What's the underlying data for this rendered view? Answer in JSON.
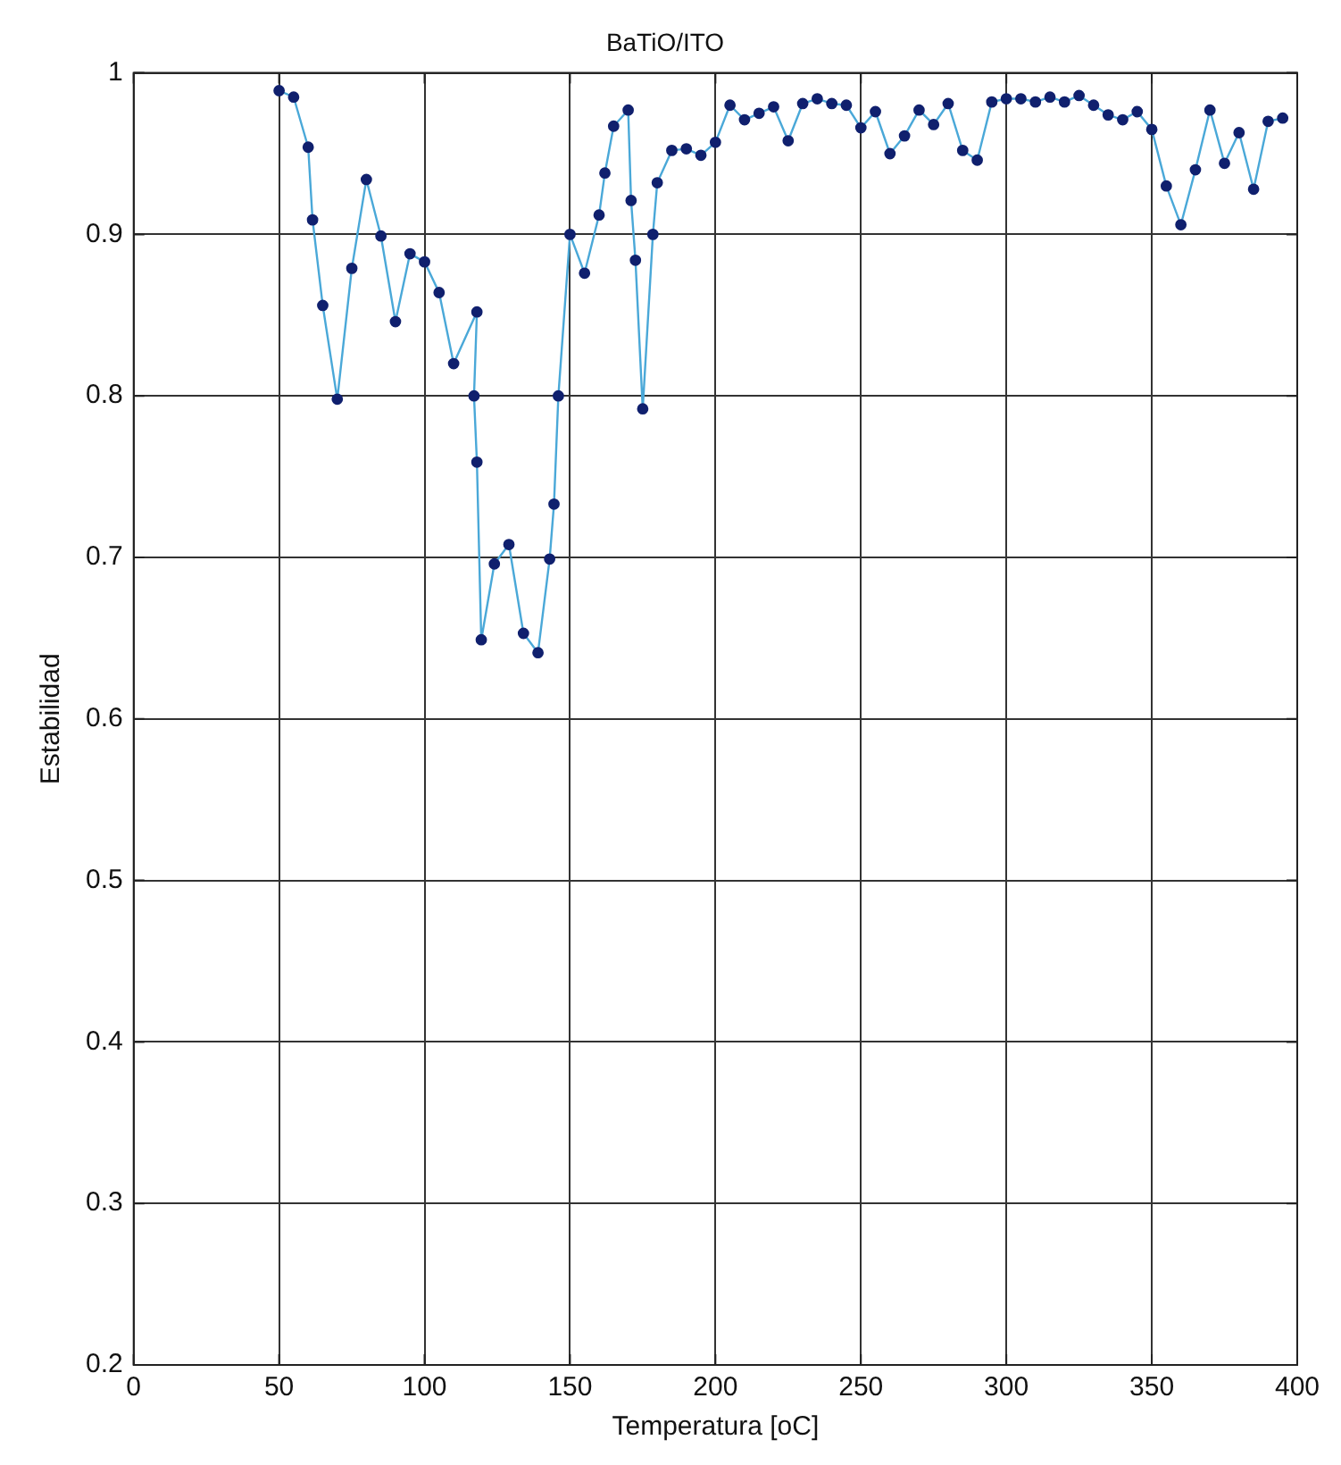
{
  "chart_data": {
    "type": "line",
    "title": "BaTiO/ITO",
    "xlabel": "Temperatura [oC]",
    "ylabel": "Estabilidad",
    "xlim": [
      0,
      400
    ],
    "xticks": [
      0,
      50,
      100,
      150,
      200,
      250,
      300,
      350,
      400
    ],
    "ylim": [
      0.2,
      1
    ],
    "yticks": [
      0.2,
      0.3,
      0.4,
      0.5,
      0.6,
      0.7,
      0.8,
      0.9,
      1
    ],
    "grid": true,
    "marker": "circle",
    "line_style": "solid",
    "series": [
      {
        "color": "#4aa8d8",
        "x": [
          50,
          55,
          60,
          61.5,
          65,
          70,
          75,
          80,
          85,
          90,
          95,
          100,
          105,
          110,
          118,
          117,
          118,
          119.5,
          124,
          129,
          134,
          139,
          143,
          144.5,
          146,
          150,
          155,
          160,
          162,
          165,
          170,
          171,
          172.5,
          175,
          178.5,
          180,
          185,
          190,
          195,
          200,
          205,
          210,
          215,
          220,
          225,
          230,
          235,
          240,
          245,
          250,
          255,
          260,
          265,
          270,
          275,
          280,
          285,
          290,
          295,
          300,
          305,
          310,
          315,
          320,
          325,
          330,
          335,
          340,
          345,
          350,
          355,
          360,
          365,
          370,
          375,
          380,
          385,
          390,
          395
        ],
        "values": [
          0.989,
          0.985,
          0.954,
          0.909,
          0.856,
          0.798,
          0.879,
          0.934,
          0.899,
          0.846,
          0.888,
          0.883,
          0.864,
          0.82,
          0.852,
          0.8,
          0.759,
          0.649,
          0.696,
          0.708,
          0.653,
          0.641,
          0.699,
          0.733,
          0.8,
          0.9,
          0.876,
          0.912,
          0.938,
          0.967,
          0.977,
          0.921,
          0.884,
          0.792,
          0.9,
          0.932,
          0.952,
          0.953,
          0.949,
          0.957,
          0.98,
          0.971,
          0.975,
          0.979,
          0.958,
          0.981,
          0.984,
          0.981,
          0.98,
          0.966,
          0.976,
          0.95,
          0.961,
          0.977,
          0.968,
          0.981,
          0.952,
          0.946,
          0.982,
          0.984,
          0.984,
          0.982,
          0.985,
          0.982,
          0.986,
          0.98,
          0.974,
          0.971,
          0.976,
          0.965,
          0.93,
          0.906,
          0.94,
          0.977,
          0.944,
          0.963,
          0.928,
          0.97,
          0.972
        ]
      }
    ]
  }
}
